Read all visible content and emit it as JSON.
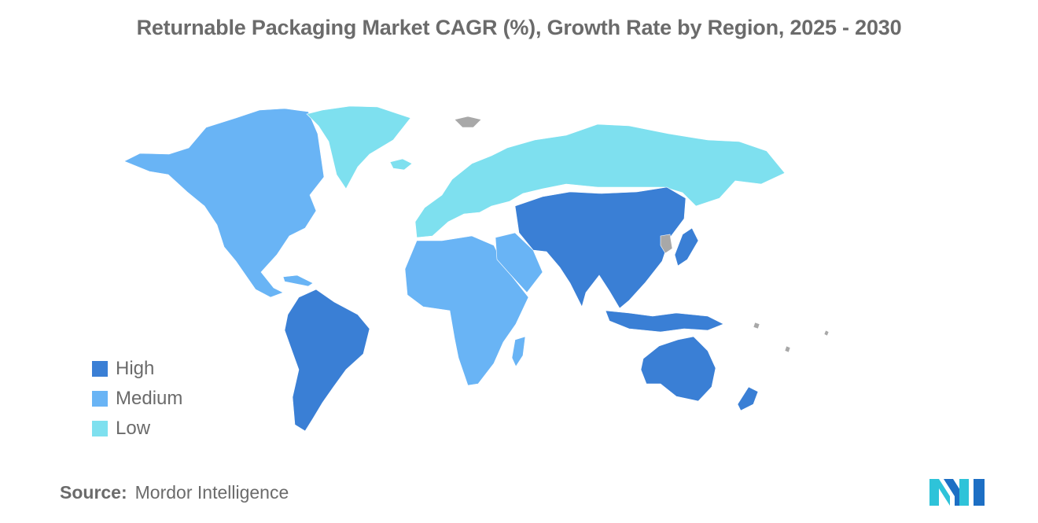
{
  "title": "Returnable Packaging Market CAGR (%), Growth Rate by Region, 2025 - 2030",
  "legend": [
    {
      "label": "High",
      "color": "#3a7fd5"
    },
    {
      "label": "Medium",
      "color": "#69b4f5"
    },
    {
      "label": "Low",
      "color": "#7ee0ef"
    }
  ],
  "no_data_color": "#a8a8a8",
  "regions": {
    "north_america": "Medium",
    "south_america": "High",
    "europe": "Low",
    "russia": "Low",
    "greenland": "Low",
    "middle_east_africa": "Medium",
    "asia_pacific": "High"
  },
  "source": {
    "key": "Source:",
    "value": "Mordor Intelligence"
  },
  "logo_icon": "mordor-intelligence-logo-icon"
}
